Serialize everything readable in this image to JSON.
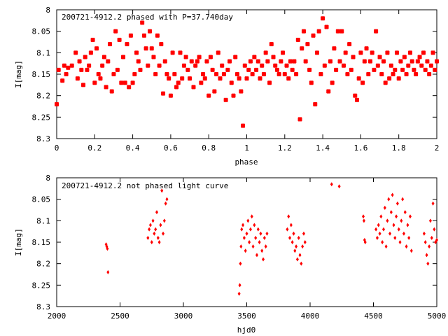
{
  "chart_data": [
    {
      "type": "scatter",
      "title": "200721-4912.2 phased with P=37.740day",
      "xlabel": "phase",
      "ylabel": "I[mag]",
      "xlim": [
        0,
        2
      ],
      "ylim": [
        8,
        8.3
      ],
      "y_inverted": true,
      "xticks": [
        "0",
        "0.2",
        "0.4",
        "0.6",
        "0.8",
        "1",
        "1.2",
        "1.4",
        "1.6",
        "1.8",
        "2"
      ],
      "yticks": [
        "8",
        "8.05",
        "8.1",
        "8.15",
        "8.2",
        "8.25",
        "8.3"
      ],
      "marker": "star",
      "color": "#ff0000",
      "points": [
        [
          0.0,
          8.22
        ],
        [
          0.01,
          8.14
        ],
        [
          0.03,
          8.165
        ],
        [
          0.04,
          8.13
        ],
        [
          0.05,
          8.15
        ],
        [
          0.06,
          8.135
        ],
        [
          0.08,
          8.13
        ],
        [
          0.1,
          8.1
        ],
        [
          0.11,
          8.16
        ],
        [
          0.12,
          8.12
        ],
        [
          0.13,
          8.14
        ],
        [
          0.14,
          8.175
        ],
        [
          0.15,
          8.11
        ],
        [
          0.16,
          8.14
        ],
        [
          0.17,
          8.13
        ],
        [
          0.18,
          8.1
        ],
        [
          0.19,
          8.07
        ],
        [
          0.2,
          8.17
        ],
        [
          0.21,
          8.09
        ],
        [
          0.22,
          8.15
        ],
        [
          0.23,
          8.16
        ],
        [
          0.24,
          8.13
        ],
        [
          0.25,
          8.11
        ],
        [
          0.26,
          8.18
        ],
        [
          0.27,
          8.12
        ],
        [
          0.28,
          8.08
        ],
        [
          0.29,
          8.19
        ],
        [
          0.3,
          8.15
        ],
        [
          0.31,
          8.05
        ],
        [
          0.32,
          8.14
        ],
        [
          0.33,
          8.07
        ],
        [
          0.34,
          8.17
        ],
        [
          0.35,
          8.11
        ],
        [
          0.36,
          8.17
        ],
        [
          0.37,
          8.08
        ],
        [
          0.38,
          8.18
        ],
        [
          0.39,
          8.06
        ],
        [
          0.4,
          8.17
        ],
        [
          0.41,
          8.15
        ],
        [
          0.42,
          8.1
        ],
        [
          0.43,
          8.12
        ],
        [
          0.44,
          8.14
        ],
        [
          0.45,
          8.03
        ],
        [
          0.46,
          8.06
        ],
        [
          0.47,
          8.09
        ],
        [
          0.48,
          8.13
        ],
        [
          0.49,
          8.05
        ],
        [
          0.5,
          8.09
        ],
        [
          0.51,
          8.11
        ],
        [
          0.52,
          8.15
        ],
        [
          0.53,
          8.06
        ],
        [
          0.54,
          8.13
        ],
        [
          0.55,
          8.08
        ],
        [
          0.56,
          8.195
        ],
        [
          0.57,
          8.12
        ],
        [
          0.58,
          8.15
        ],
        [
          0.59,
          8.16
        ],
        [
          0.6,
          8.2
        ],
        [
          0.61,
          8.1
        ],
        [
          0.62,
          8.15
        ],
        [
          0.63,
          8.18
        ],
        [
          0.64,
          8.17
        ],
        [
          0.65,
          8.1
        ],
        [
          0.66,
          8.16
        ],
        [
          0.67,
          8.13
        ],
        [
          0.68,
          8.11
        ],
        [
          0.69,
          8.14
        ],
        [
          0.7,
          8.16
        ],
        [
          0.71,
          8.12
        ],
        [
          0.72,
          8.18
        ],
        [
          0.73,
          8.13
        ],
        [
          0.74,
          8.12
        ],
        [
          0.75,
          8.11
        ],
        [
          0.76,
          8.17
        ],
        [
          0.77,
          8.15
        ],
        [
          0.78,
          8.16
        ],
        [
          0.79,
          8.12
        ],
        [
          0.8,
          8.2
        ],
        [
          0.81,
          8.11
        ],
        [
          0.82,
          8.14
        ],
        [
          0.83,
          8.19
        ],
        [
          0.84,
          8.15
        ],
        [
          0.85,
          8.1
        ],
        [
          0.86,
          8.16
        ],
        [
          0.87,
          8.13
        ],
        [
          0.88,
          8.15
        ],
        [
          0.89,
          8.21
        ],
        [
          0.9,
          8.14
        ],
        [
          0.91,
          8.12
        ],
        [
          0.92,
          8.17
        ],
        [
          0.93,
          8.2
        ],
        [
          0.94,
          8.11
        ],
        [
          0.95,
          8.15
        ],
        [
          0.96,
          8.16
        ],
        [
          0.97,
          8.19
        ],
        [
          0.98,
          8.27
        ],
        [
          0.99,
          8.13
        ],
        [
          1.0,
          8.16
        ],
        [
          1.01,
          8.14
        ],
        [
          1.02,
          8.12
        ],
        [
          1.03,
          8.15
        ],
        [
          1.04,
          8.11
        ],
        [
          1.05,
          8.14
        ],
        [
          1.06,
          8.12
        ],
        [
          1.07,
          8.16
        ],
        [
          1.08,
          8.13
        ],
        [
          1.09,
          8.15
        ],
        [
          1.1,
          8.1
        ],
        [
          1.11,
          8.12
        ],
        [
          1.12,
          8.17
        ],
        [
          1.13,
          8.08
        ],
        [
          1.14,
          8.11
        ],
        [
          1.15,
          8.13
        ],
        [
          1.16,
          8.14
        ],
        [
          1.17,
          8.15
        ],
        [
          1.18,
          8.12
        ],
        [
          1.19,
          8.1
        ],
        [
          1.2,
          8.15
        ],
        [
          1.21,
          8.13
        ],
        [
          1.22,
          8.16
        ],
        [
          1.23,
          8.12
        ],
        [
          1.24,
          8.14
        ],
        [
          1.25,
          8.12
        ],
        [
          1.26,
          8.15
        ],
        [
          1.27,
          8.07
        ],
        [
          1.28,
          8.255
        ],
        [
          1.29,
          8.09
        ],
        [
          1.3,
          8.05
        ],
        [
          1.31,
          8.12
        ],
        [
          1.32,
          8.08
        ],
        [
          1.33,
          8.14
        ],
        [
          1.34,
          8.17
        ],
        [
          1.35,
          8.06
        ],
        [
          1.36,
          8.22
        ],
        [
          1.37,
          8.1
        ],
        [
          1.38,
          8.05
        ],
        [
          1.39,
          8.15
        ],
        [
          1.4,
          8.02
        ],
        [
          1.41,
          8.13
        ],
        [
          1.42,
          8.04
        ],
        [
          1.43,
          8.19
        ],
        [
          1.44,
          8.12
        ],
        [
          1.45,
          8.17
        ],
        [
          1.46,
          8.09
        ],
        [
          1.47,
          8.14
        ],
        [
          1.48,
          8.05
        ],
        [
          1.49,
          8.12
        ],
        [
          1.5,
          8.05
        ],
        [
          1.51,
          8.13
        ],
        [
          1.52,
          8.1
        ],
        [
          1.53,
          8.15
        ],
        [
          1.54,
          8.08
        ],
        [
          1.55,
          8.14
        ],
        [
          1.56,
          8.11
        ],
        [
          1.57,
          8.2
        ],
        [
          1.58,
          8.21
        ],
        [
          1.59,
          8.16
        ],
        [
          1.6,
          8.1
        ],
        [
          1.61,
          8.17
        ],
        [
          1.62,
          8.12
        ],
        [
          1.63,
          8.09
        ],
        [
          1.64,
          8.15
        ],
        [
          1.65,
          8.12
        ],
        [
          1.66,
          8.1
        ],
        [
          1.67,
          8.14
        ],
        [
          1.68,
          8.05
        ],
        [
          1.69,
          8.13
        ],
        [
          1.7,
          8.11
        ],
        [
          1.71,
          8.15
        ],
        [
          1.72,
          8.12
        ],
        [
          1.73,
          8.17
        ],
        [
          1.74,
          8.1
        ],
        [
          1.75,
          8.16
        ],
        [
          1.76,
          8.13
        ],
        [
          1.77,
          8.15
        ],
        [
          1.78,
          8.14
        ],
        [
          1.79,
          8.1
        ],
        [
          1.8,
          8.16
        ],
        [
          1.81,
          8.12
        ],
        [
          1.82,
          8.14
        ],
        [
          1.83,
          8.11
        ],
        [
          1.84,
          8.15
        ],
        [
          1.85,
          8.13
        ],
        [
          1.86,
          8.1
        ],
        [
          1.87,
          8.12
        ],
        [
          1.88,
          8.14
        ],
        [
          1.89,
          8.15
        ],
        [
          1.9,
          8.12
        ],
        [
          1.91,
          8.11
        ],
        [
          1.92,
          8.13
        ],
        [
          1.93,
          8.1
        ],
        [
          1.94,
          8.14
        ],
        [
          1.95,
          8.12
        ],
        [
          1.96,
          8.15
        ],
        [
          1.97,
          8.13
        ],
        [
          1.98,
          8.1
        ],
        [
          1.99,
          8.14
        ],
        [
          2.0,
          8.12
        ]
      ]
    },
    {
      "type": "scatter",
      "title": "200721-4912.2 not phased light curve",
      "xlabel": "hjd0",
      "ylabel": "I[mag]",
      "xlim": [
        2000,
        5000
      ],
      "ylim": [
        8,
        8.3
      ],
      "y_inverted": true,
      "xticks": [
        "2000",
        "2500",
        "3000",
        "3500",
        "4000",
        "4500",
        "5000"
      ],
      "yticks": [
        "8",
        "8.05",
        "8.1",
        "8.15",
        "8.2",
        "8.25",
        "8.3"
      ],
      "marker": "diamond",
      "color": "#ff0000",
      "points": [
        [
          2390,
          8.155
        ],
        [
          2395,
          8.16
        ],
        [
          2400,
          8.165
        ],
        [
          2405,
          8.22
        ],
        [
          2720,
          8.14
        ],
        [
          2730,
          8.12
        ],
        [
          2740,
          8.11
        ],
        [
          2750,
          8.15
        ],
        [
          2760,
          8.1
        ],
        [
          2770,
          8.13
        ],
        [
          2780,
          8.12
        ],
        [
          2790,
          8.08
        ],
        [
          2800,
          8.14
        ],
        [
          2810,
          8.15
        ],
        [
          2820,
          8.11
        ],
        [
          2830,
          8.03
        ],
        [
          2840,
          8.13
        ],
        [
          2850,
          8.1
        ],
        [
          2860,
          8.06
        ],
        [
          2870,
          8.05
        ],
        [
          3440,
          8.27
        ],
        [
          3445,
          8.25
        ],
        [
          3450,
          8.2
        ],
        [
          3455,
          8.16
        ],
        [
          3460,
          8.12
        ],
        [
          3470,
          8.11
        ],
        [
          3480,
          8.14
        ],
        [
          3490,
          8.17
        ],
        [
          3500,
          8.13
        ],
        [
          3510,
          8.1
        ],
        [
          3520,
          8.15
        ],
        [
          3530,
          8.12
        ],
        [
          3540,
          8.09
        ],
        [
          3550,
          8.16
        ],
        [
          3560,
          8.11
        ],
        [
          3570,
          8.14
        ],
        [
          3580,
          8.18
        ],
        [
          3590,
          8.12
        ],
        [
          3600,
          8.15
        ],
        [
          3610,
          8.13
        ],
        [
          3620,
          8.17
        ],
        [
          3630,
          8.19
        ],
        [
          3640,
          8.14
        ],
        [
          3650,
          8.16
        ],
        [
          3660,
          8.13
        ],
        [
          3820,
          8.12
        ],
        [
          3830,
          8.09
        ],
        [
          3840,
          8.14
        ],
        [
          3850,
          8.11
        ],
        [
          3860,
          8.15
        ],
        [
          3870,
          8.13
        ],
        [
          3880,
          8.17
        ],
        [
          3890,
          8.16
        ],
        [
          3900,
          8.19
        ],
        [
          3910,
          8.14
        ],
        [
          3920,
          8.18
        ],
        [
          3930,
          8.2
        ],
        [
          3940,
          8.16
        ],
        [
          3950,
          8.13
        ],
        [
          3960,
          8.15
        ],
        [
          4170,
          8.015
        ],
        [
          4230,
          8.02
        ],
        [
          4420,
          8.09
        ],
        [
          4425,
          8.1
        ],
        [
          4430,
          8.145
        ],
        [
          4435,
          8.15
        ],
        [
          4520,
          8.12
        ],
        [
          4530,
          8.14
        ],
        [
          4540,
          8.11
        ],
        [
          4550,
          8.13
        ],
        [
          4560,
          8.09
        ],
        [
          4570,
          8.15
        ],
        [
          4580,
          8.12
        ],
        [
          4590,
          8.07
        ],
        [
          4600,
          8.16
        ],
        [
          4610,
          8.1
        ],
        [
          4620,
          8.05
        ],
        [
          4630,
          8.13
        ],
        [
          4640,
          8.08
        ],
        [
          4650,
          8.04
        ],
        [
          4660,
          8.11
        ],
        [
          4670,
          8.14
        ],
        [
          4680,
          8.09
        ],
        [
          4690,
          8.06
        ],
        [
          4700,
          8.12
        ],
        [
          4710,
          8.15
        ],
        [
          4720,
          8.1
        ],
        [
          4730,
          8.05
        ],
        [
          4740,
          8.13
        ],
        [
          4750,
          8.08
        ],
        [
          4760,
          8.16
        ],
        [
          4770,
          8.11
        ],
        [
          4780,
          8.14
        ],
        [
          4790,
          8.09
        ],
        [
          4800,
          8.17
        ],
        [
          4900,
          8.13
        ],
        [
          4910,
          8.15
        ],
        [
          4920,
          8.18
        ],
        [
          4930,
          8.2
        ],
        [
          4940,
          8.16
        ],
        [
          4950,
          8.1
        ],
        [
          4960,
          8.14
        ],
        [
          4970,
          8.06
        ],
        [
          4980,
          8.12
        ],
        [
          4990,
          8.15
        ],
        [
          5000,
          8.145
        ]
      ]
    }
  ]
}
